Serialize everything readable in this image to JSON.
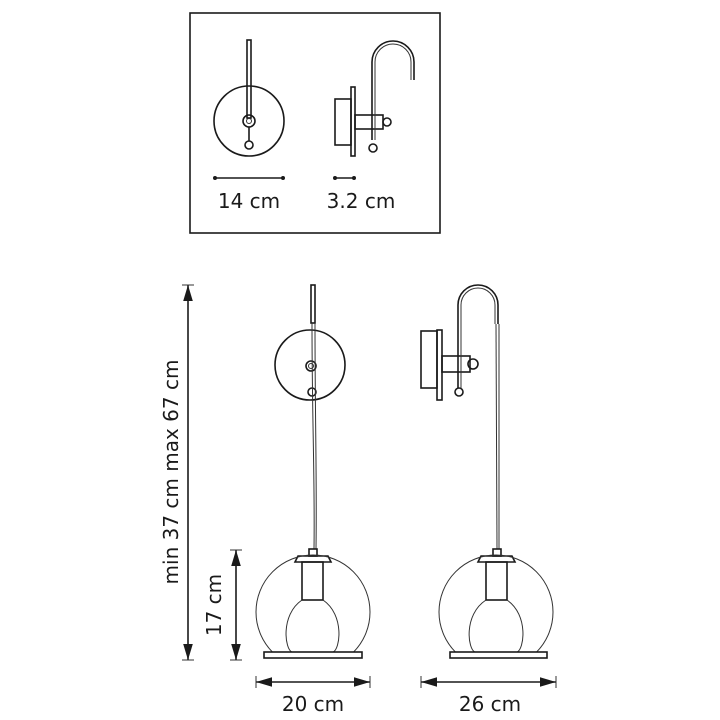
{
  "labels": {
    "plate_diameter": "14 cm",
    "plate_depth": "3.2 cm",
    "total_height": "min 37 cm max 67 cm",
    "shade_height": "17 cm",
    "front_width": "20 cm",
    "side_width": "26 cm"
  },
  "colors": {
    "line": "#1a1a1a",
    "background": "#ffffff"
  }
}
